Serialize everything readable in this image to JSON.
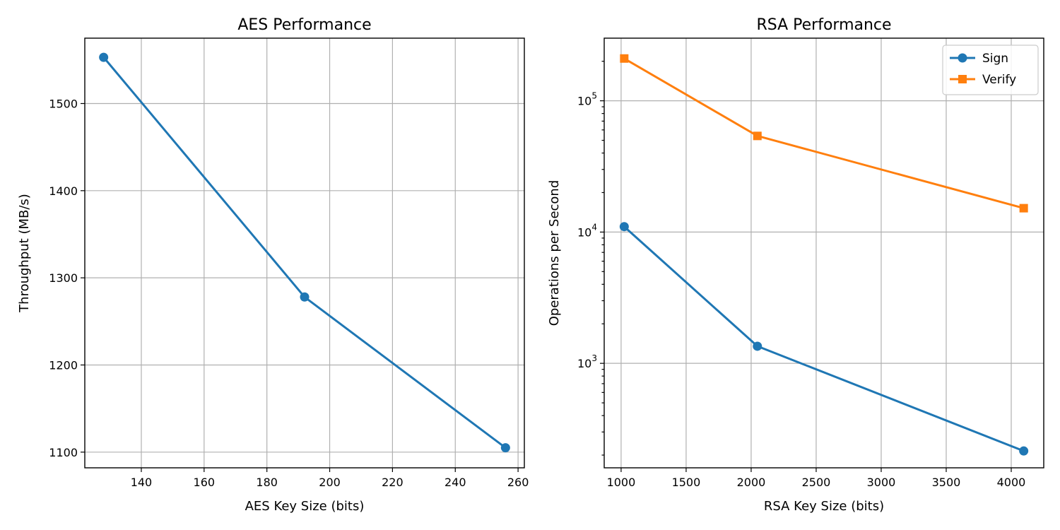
{
  "chart_data": [
    {
      "type": "line",
      "title": "AES Performance",
      "xlabel": "AES Key Size (bits)",
      "ylabel": "Throughput (MB/s)",
      "xlim": [
        122,
        262
      ],
      "ylim": [
        1082,
        1575
      ],
      "xticks": [
        140,
        160,
        180,
        200,
        220,
        240,
        260
      ],
      "yticks": [
        1100,
        1200,
        1300,
        1400,
        1500
      ],
      "yscale": "linear",
      "grid": true,
      "series": [
        {
          "color": "#1f77b4",
          "marker": "circle",
          "x": [
            128,
            192,
            256
          ],
          "y": [
            1553,
            1278,
            1105
          ]
        }
      ]
    },
    {
      "type": "line",
      "title": "RSA Performance",
      "xlabel": "RSA Key Size (bits)",
      "ylabel": "Operations per Second",
      "xlim": [
        870,
        4250
      ],
      "ylim": [
        160,
        300000
      ],
      "xticks": [
        1000,
        1500,
        2000,
        2500,
        3000,
        3500,
        4000
      ],
      "yticks": [
        1000,
        10000,
        100000
      ],
      "ytick_labels": [
        {
          "base": "10",
          "exp": "3"
        },
        {
          "base": "10",
          "exp": "4"
        },
        {
          "base": "10",
          "exp": "5"
        }
      ],
      "yscale": "log",
      "grid": true,
      "legend": "top-right",
      "series": [
        {
          "name": "Sign",
          "color": "#1f77b4",
          "marker": "circle",
          "x": [
            1024,
            2048,
            4096
          ],
          "y": [
            11000,
            1350,
            215
          ]
        },
        {
          "name": "Verify",
          "color": "#ff7f0e",
          "marker": "square",
          "x": [
            1024,
            2048,
            4096
          ],
          "y": [
            210000,
            54000,
            15200
          ]
        }
      ]
    }
  ]
}
